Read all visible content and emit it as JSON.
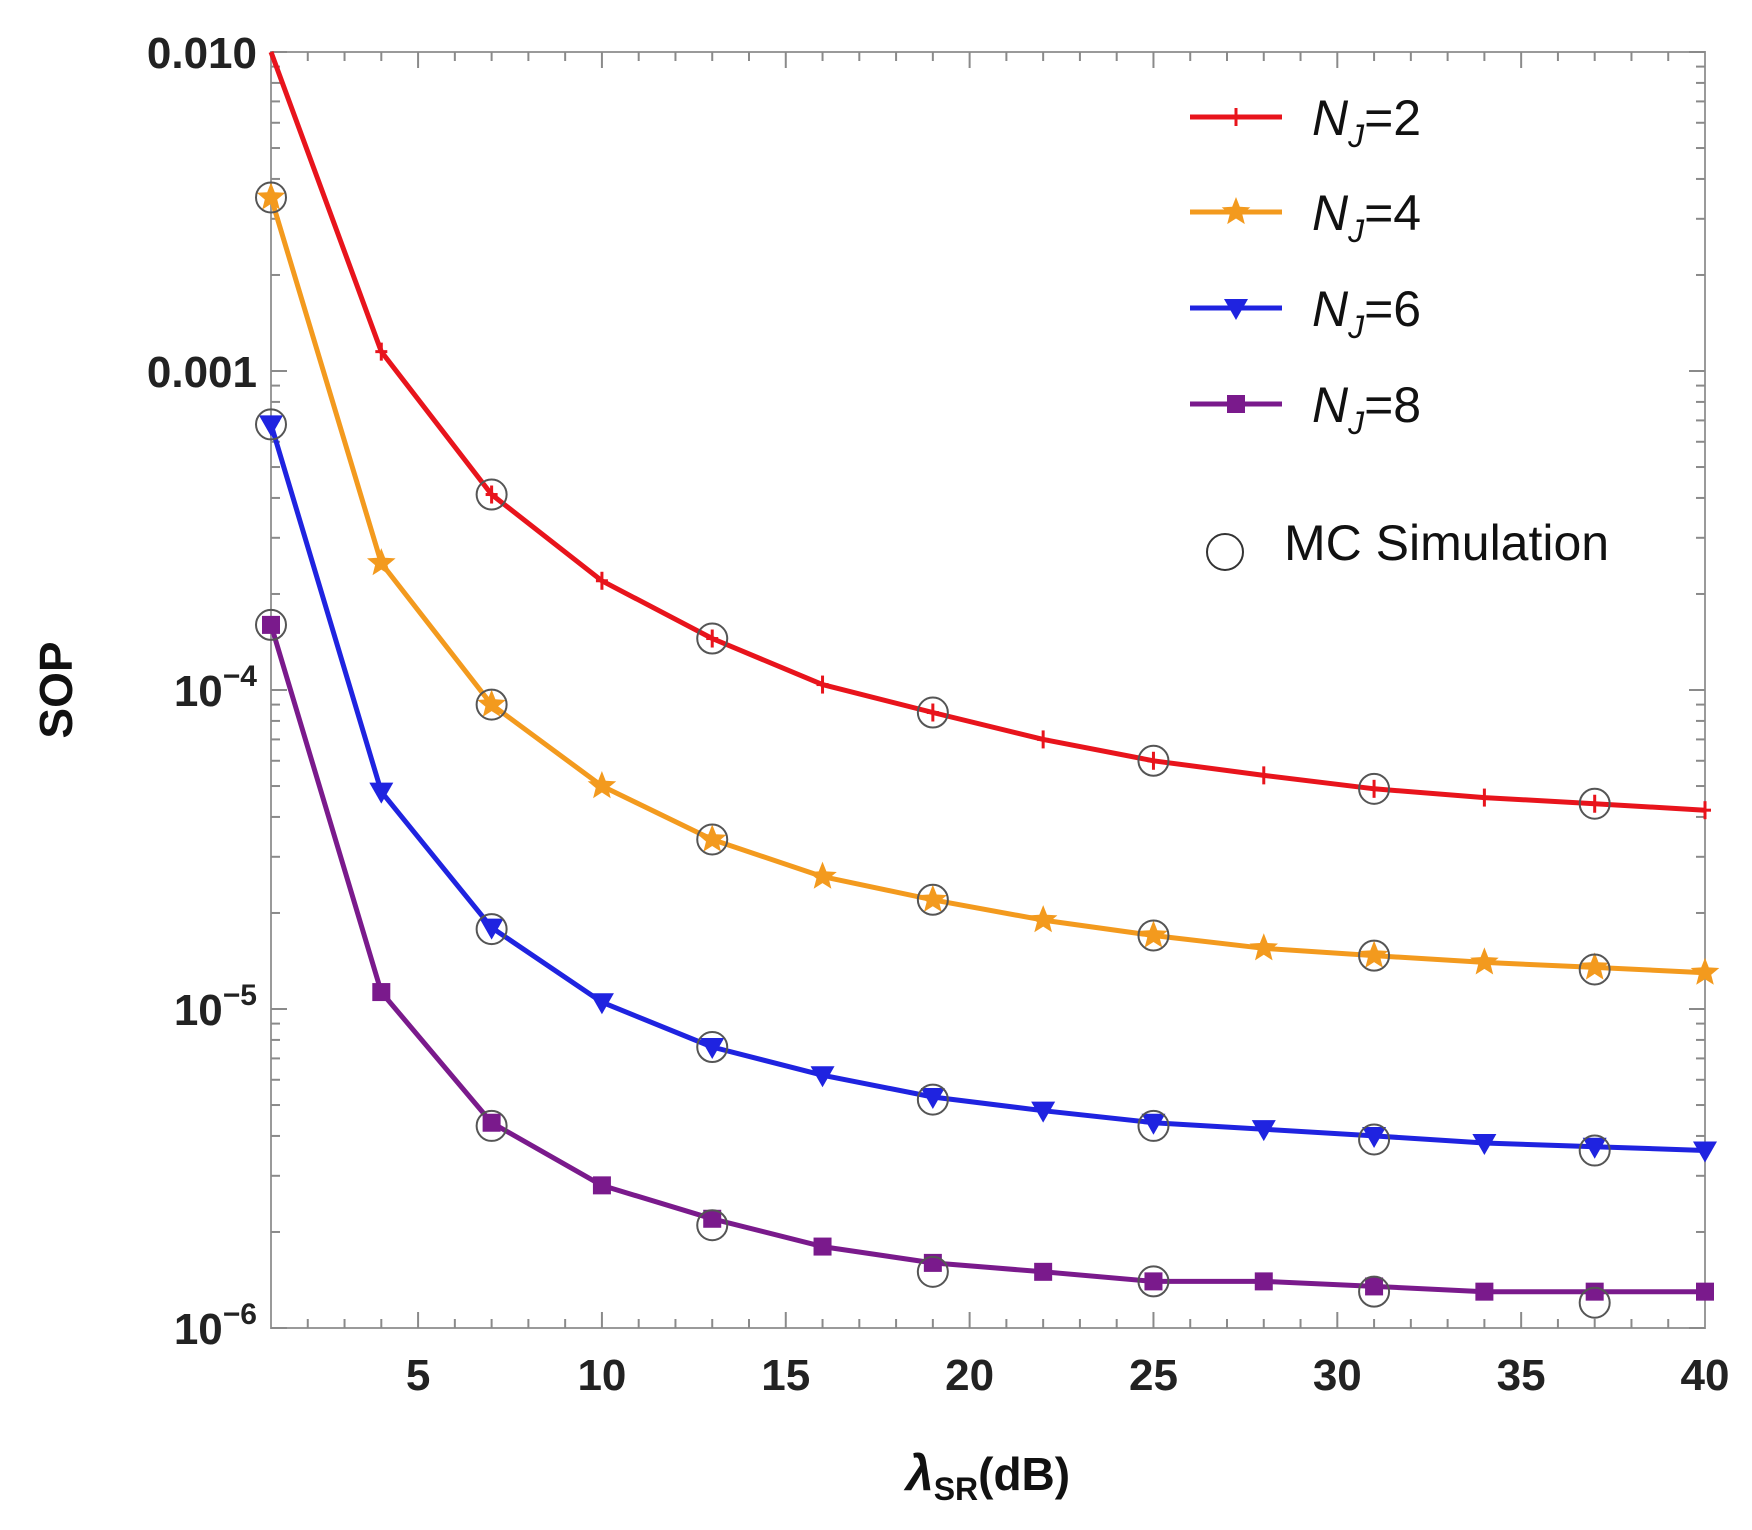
{
  "chart_data": {
    "type": "line",
    "title": "",
    "xlabel": {
      "symbol": "λ",
      "subscript": "SR",
      "suffix": "(dB)"
    },
    "ylabel": "SOP",
    "xlim": [
      1,
      40
    ],
    "ylim": [
      1e-06,
      0.01
    ],
    "yscale": "log",
    "grid": false,
    "legend_position": "top-right",
    "x_ticks": [
      5,
      10,
      15,
      20,
      25,
      30,
      35,
      40
    ],
    "x_tick_labels": [
      "5",
      "10",
      "15",
      "20",
      "25",
      "30",
      "35",
      "40"
    ],
    "y_ticks": [
      {
        "value": 0.01,
        "label": "0.010",
        "exp": ""
      },
      {
        "value": 0.001,
        "label": "0.001",
        "exp": ""
      },
      {
        "value": 0.0001,
        "label": "10",
        "exp": "−4"
      },
      {
        "value": 1e-05,
        "label": "10",
        "exp": "−5"
      },
      {
        "value": 1e-06,
        "label": "10",
        "exp": "−6"
      }
    ],
    "series": [
      {
        "name": "N_J=2",
        "legend_base": "N",
        "legend_sub": "J",
        "legend_suffix": "=2",
        "color": "#e8141c",
        "marker": "tick",
        "x": [
          1,
          4,
          7,
          10,
          13,
          16,
          19,
          22,
          25,
          28,
          31,
          34,
          37,
          40
        ],
        "values": [
          0.0125,
          0.00115,
          0.00041,
          0.00022,
          0.000145,
          0.000104,
          8.5e-05,
          7e-05,
          6e-05,
          5.4e-05,
          4.9e-05,
          4.6e-05,
          4.4e-05,
          4.2e-05
        ]
      },
      {
        "name": "N_J=4",
        "legend_base": "N",
        "legend_sub": "J",
        "legend_suffix": "=4",
        "color": "#f39a1e",
        "marker": "star",
        "x": [
          1,
          4,
          7,
          10,
          13,
          16,
          19,
          22,
          25,
          28,
          31,
          34,
          37,
          40
        ],
        "values": [
          0.0035,
          0.00025,
          9e-05,
          5e-05,
          3.4e-05,
          2.6e-05,
          2.2e-05,
          1.9e-05,
          1.7e-05,
          1.55e-05,
          1.47e-05,
          1.4e-05,
          1.35e-05,
          1.3e-05
        ]
      },
      {
        "name": "N_J=6",
        "legend_base": "N",
        "legend_sub": "J",
        "legend_suffix": "=6",
        "color": "#1f23e0",
        "marker": "triangle-down",
        "x": [
          1,
          4,
          7,
          10,
          13,
          16,
          19,
          22,
          25,
          28,
          31,
          34,
          37,
          40
        ],
        "values": [
          0.00068,
          4.8e-05,
          1.8e-05,
          1.05e-05,
          7.6e-06,
          6.2e-06,
          5.3e-06,
          4.8e-06,
          4.4e-06,
          4.2e-06,
          4e-06,
          3.8e-06,
          3.7e-06,
          3.6e-06
        ]
      },
      {
        "name": "N_J=8",
        "legend_base": "N",
        "legend_sub": "J",
        "legend_suffix": "=8",
        "color": "#7a1a8c",
        "marker": "square",
        "x": [
          1,
          4,
          7,
          10,
          13,
          16,
          19,
          22,
          25,
          28,
          31,
          34,
          37,
          40
        ],
        "values": [
          0.00016,
          1.13e-05,
          4.4e-06,
          2.8e-06,
          2.2e-06,
          1.8e-06,
          1.6e-06,
          1.5e-06,
          1.4e-06,
          1.4e-06,
          1.35e-06,
          1.3e-06,
          1.3e-06,
          1.3e-06
        ]
      }
    ],
    "mc_simulation": {
      "name": "MC Simulation",
      "color": "#555555",
      "points": [
        {
          "x": 1,
          "y": 0.0035
        },
        {
          "x": 1,
          "y": 0.00068
        },
        {
          "x": 1,
          "y": 0.00016
        },
        {
          "x": 7,
          "y": 0.00041
        },
        {
          "x": 7,
          "y": 9e-05
        },
        {
          "x": 7,
          "y": 1.78e-05
        },
        {
          "x": 7,
          "y": 4.3e-06
        },
        {
          "x": 13,
          "y": 0.000145
        },
        {
          "x": 13,
          "y": 3.4e-05
        },
        {
          "x": 13,
          "y": 7.6e-06
        },
        {
          "x": 13,
          "y": 2.1e-06
        },
        {
          "x": 19,
          "y": 8.5e-05
        },
        {
          "x": 19,
          "y": 2.2e-05
        },
        {
          "x": 19,
          "y": 5.2e-06
        },
        {
          "x": 19,
          "y": 1.5e-06
        },
        {
          "x": 25,
          "y": 6e-05
        },
        {
          "x": 25,
          "y": 1.7e-05
        },
        {
          "x": 25,
          "y": 4.3e-06
        },
        {
          "x": 25,
          "y": 1.4e-06
        },
        {
          "x": 31,
          "y": 4.9e-05
        },
        {
          "x": 31,
          "y": 1.47e-05
        },
        {
          "x": 31,
          "y": 3.9e-06
        },
        {
          "x": 31,
          "y": 1.3e-06
        },
        {
          "x": 37,
          "y": 4.4e-05
        },
        {
          "x": 37,
          "y": 1.33e-05
        },
        {
          "x": 37,
          "y": 3.6e-06
        },
        {
          "x": 37,
          "y": 1.2e-06
        }
      ]
    }
  }
}
